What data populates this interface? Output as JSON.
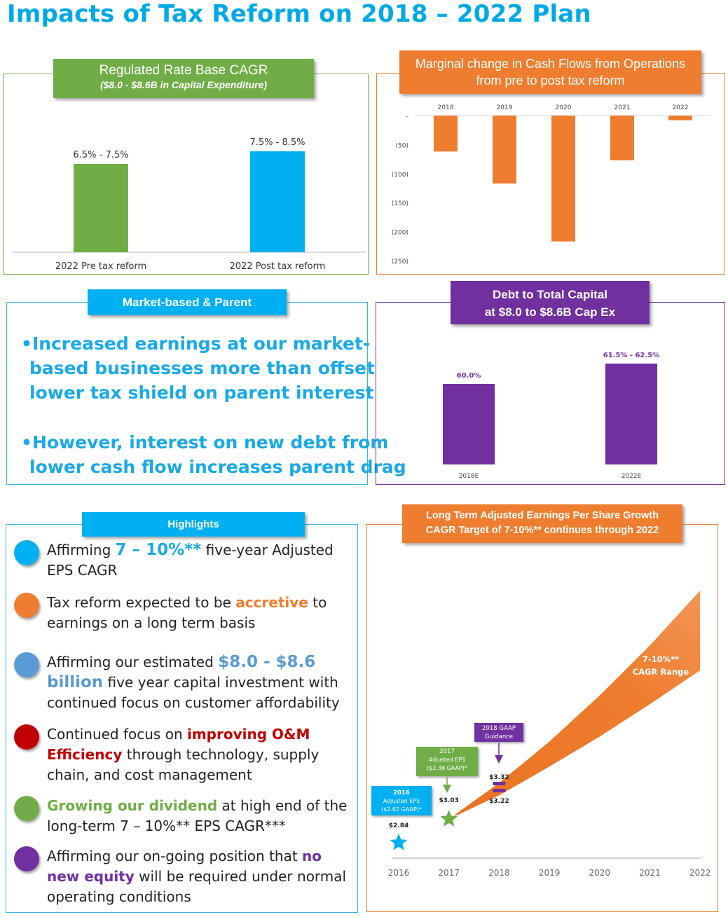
{
  "title": "Impacts of Tax Reform on 2018 – 2022 Plan",
  "colors": {
    "title": "#00a9e6",
    "green": "#70ad47",
    "blue": "#00b0f0",
    "orange": "#ef7d2f",
    "purple": "#7030a0",
    "steel_blue": "#5b9bd5",
    "red": "#c00000"
  },
  "rate_base": {
    "banner_title": "Regulated Rate Base CAGR",
    "banner_subtitle": "($8.0 - $8.6B in Capital Expenditure)"
  },
  "cash_flows": {
    "banner_line1": "Marginal change in Cash Flows from Operations",
    "banner_line2": "from pre to post tax reform"
  },
  "market_based": {
    "banner": "Market-based & Parent",
    "bullet1": [
      "•Increased earnings at our market-",
      "based businesses more than offset",
      "lower tax shield on parent interest"
    ],
    "bullet2": [
      "•However, interest on new debt from",
      "lower cash flow increases parent drag"
    ]
  },
  "debt": {
    "banner_line1": "Debt to Total Capital",
    "banner_line2": "at $8.0 to $8.6B Cap Ex"
  },
  "highlights": {
    "banner": "Highlights",
    "items": [
      {
        "color": "#00b0f0",
        "parts": [
          {
            "t": "Affirming "
          },
          {
            "t": "7 – 10%**",
            "c": "#1aa9e6",
            "b": true,
            "big": true
          },
          {
            "t": " five-year Adjusted EPS CAGR"
          }
        ]
      },
      {
        "color": "#ef7d2f",
        "parts": [
          {
            "t": "Tax reform expected to be "
          },
          {
            "t": "accretive",
            "c": "#ef7d2f",
            "b": true
          },
          {
            "t": " to earnings on a long term basis"
          }
        ]
      },
      {
        "color": "#5b9bd5",
        "parts": [
          {
            "t": "Affirming our estimated "
          },
          {
            "t": "$8.0 - $8.6 billion",
            "c": "#5b9bd5",
            "b": true,
            "big": true
          },
          {
            "t": " five year capital investment with continued focus on customer affordability"
          }
        ]
      },
      {
        "color": "#c00000",
        "parts": [
          {
            "t": "Continued focus on "
          },
          {
            "t": "improving O&M Efficiency",
            "c": "#c00000",
            "b": true
          },
          {
            "t": " through technology, supply chain, and cost management"
          }
        ]
      },
      {
        "color": "#70ad47",
        "parts": [
          {
            "t": "Growing our dividend",
            "c": "#70ad47",
            "b": true
          },
          {
            "t": " at high end of the long-term 7 – 10%** EPS CAGR***"
          }
        ]
      },
      {
        "color": "#7030a0",
        "parts": [
          {
            "t": "Affirming our on-going position that "
          },
          {
            "t": "no new equity",
            "c": "#7030a0",
            "b": true
          },
          {
            "t": " will be required under normal operating conditions"
          }
        ]
      }
    ]
  },
  "eps": {
    "banner_line1": "Long Term Adjusted Earnings Per Share Growth",
    "banner_line2": "CAGR Target of 7-10%** continues through 2022",
    "range_label": [
      "7-10%**",
      "CAGR Range"
    ],
    "callout_2016": [
      "2016",
      "Adjusted EPS",
      "($2.62 GAAP)*"
    ],
    "callout_2017": [
      "2017",
      "Adjusted EPS",
      "($2.38 GAAP)*"
    ],
    "callout_2018": [
      "2018 GAAP",
      "Guidance"
    ]
  },
  "chart_data": [
    {
      "type": "bar",
      "title": "Regulated Rate Base CAGR",
      "subtitle": "($8.0 - $8.6B in Capital Expenditure)",
      "categories": [
        "2022 Pre tax reform",
        "2022 Post tax reform"
      ],
      "values": [
        7.0,
        8.0
      ],
      "data_labels": [
        "6.5% - 7.5%",
        "7.5% - 8.5%"
      ],
      "colors": [
        "#70ad47",
        "#00b0f0"
      ],
      "ylim": [
        0,
        10
      ],
      "grid": false
    },
    {
      "type": "bar",
      "title": "Marginal change in Cash Flows from Operations from pre to post tax reform",
      "categories": [
        "2018",
        "2019",
        "2020",
        "2021",
        "2022"
      ],
      "values": [
        -62,
        -117,
        -217,
        -77,
        -8
      ],
      "ylim": [
        -250,
        0
      ],
      "yticks": [
        "-",
        "(50)",
        "(100)",
        "(150)",
        "(200)",
        "(250)"
      ],
      "color": "#ef7d2f",
      "grid": false
    },
    {
      "type": "bar",
      "title": "Debt to Total Capital at $8.0 to $8.6B Cap Ex",
      "categories": [
        "2018E",
        "2022E"
      ],
      "values": [
        60.0,
        62.0
      ],
      "data_labels": [
        "60.0%",
        "61.5% - 62.5%"
      ],
      "color": "#7030a0",
      "ylim": [
        50,
        63
      ],
      "grid": false
    },
    {
      "type": "area",
      "title": "Long Term Adjusted Earnings Per Share Growth CAGR Target of 7-10%** continues through 2022",
      "x": [
        "2016",
        "2017",
        "2018",
        "2019",
        "2020",
        "2021",
        "2022"
      ],
      "series": [
        {
          "name": "Low",
          "values": [
            2.84,
            3.03,
            3.22,
            3.45,
            3.69,
            3.95,
            4.22
          ]
        },
        {
          "name": "High",
          "values": [
            2.84,
            3.03,
            3.32,
            3.65,
            4.02,
            4.42,
            4.86
          ]
        }
      ],
      "points": [
        {
          "x": "2016",
          "value": 2.84,
          "label": "$2.84",
          "marker": "star",
          "color": "#00b0f0"
        },
        {
          "x": "2017",
          "value": 3.03,
          "label": "$3.03",
          "marker": "star",
          "color": "#70ad47"
        },
        {
          "x": "2018",
          "value": 3.32,
          "label": "$3.32",
          "marker": "bar",
          "color": "#7030a0"
        },
        {
          "x": "2018",
          "value": 3.22,
          "label": "$3.22",
          "marker": "bar",
          "color": "#7030a0"
        }
      ],
      "color": "#ef7d2f",
      "grid": false
    }
  ]
}
